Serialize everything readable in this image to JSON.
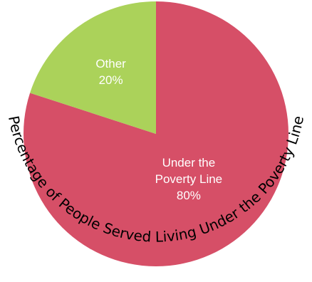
{
  "chart_data": {
    "type": "pie",
    "title": "Percentage of People Served Living Under the Poverty Line",
    "slices": [
      {
        "name": "Under the Poverty Line",
        "label_lines": [
          "Under the",
          "Poverty Line",
          "80%"
        ],
        "value": 80,
        "color": "#D64F67",
        "label_color": "#ffffff"
      },
      {
        "name": "Other",
        "label_lines": [
          "Other",
          "20%"
        ],
        "value": 20,
        "color": "#ABD25A",
        "label_color": "#1f1f1f"
      }
    ],
    "start": "12 o'clock",
    "direction": "clockwise",
    "legend": "none"
  }
}
